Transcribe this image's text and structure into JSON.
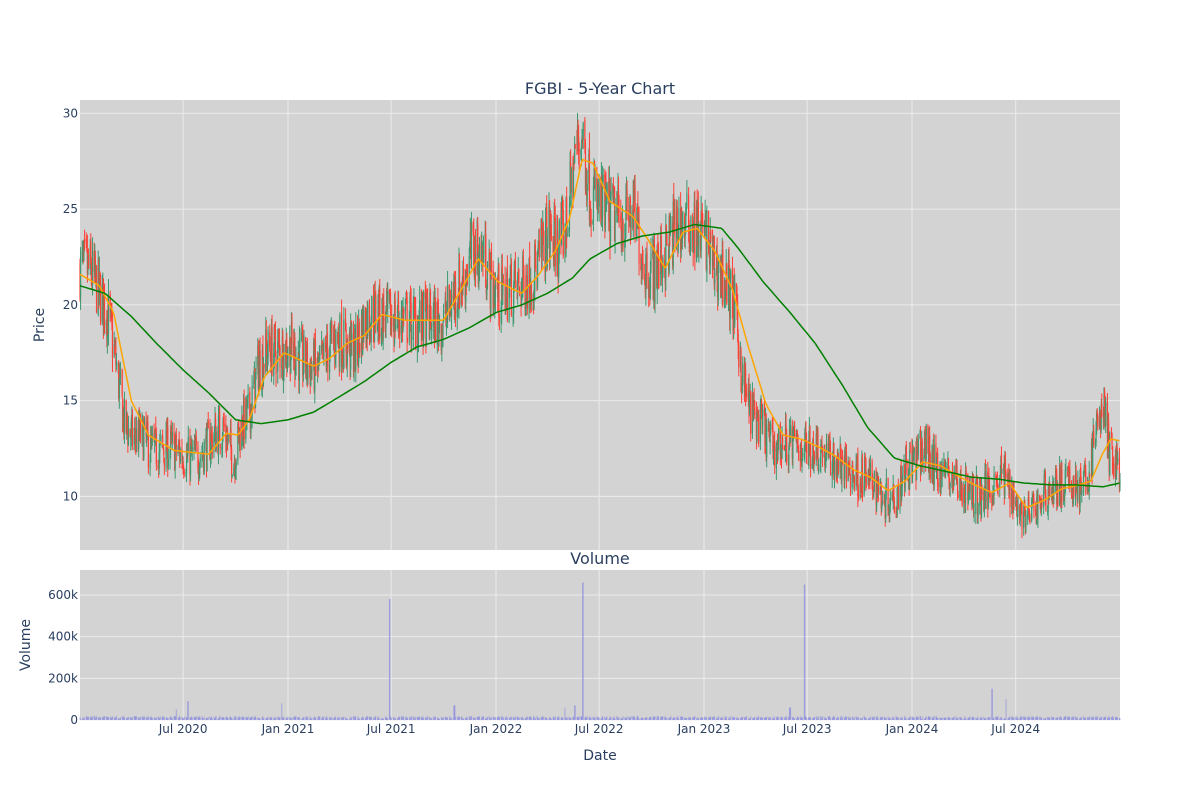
{
  "chart_data": [
    {
      "id": "price",
      "type": "candlestick",
      "title": "FGBI - 5-Year Chart",
      "ylabel": "Price",
      "xlabel": "",
      "ylim": [
        7.2,
        30.7
      ],
      "yticks": [
        10,
        15,
        20,
        25,
        30
      ],
      "x_start": "2020-01-02",
      "x_end": "2024-12-31",
      "grid": true,
      "colors": {
        "up": "#3d9970",
        "down": "#ff4136",
        "ma_short": "#ffa500",
        "ma_long": "#008000",
        "background": "#d3d3d3"
      },
      "close_anchors": [
        [
          "2020-01-02",
          22.0
        ],
        [
          "2020-01-20",
          21.8
        ],
        [
          "2020-02-05",
          20.6
        ],
        [
          "2020-02-20",
          19.6
        ],
        [
          "2020-03-05",
          17.0
        ],
        [
          "2020-03-20",
          13.8
        ],
        [
          "2020-04-05",
          13.0
        ],
        [
          "2020-04-20",
          13.2
        ],
        [
          "2020-05-05",
          12.4
        ],
        [
          "2020-05-20",
          12.4
        ],
        [
          "2020-06-05",
          12.6
        ],
        [
          "2020-06-25",
          12.3
        ],
        [
          "2020-07-10",
          12.0
        ],
        [
          "2020-08-01",
          12.2
        ],
        [
          "2020-08-25",
          13.2
        ],
        [
          "2020-09-10",
          13.6
        ],
        [
          "2020-09-28",
          11.8
        ],
        [
          "2020-10-10",
          13.6
        ],
        [
          "2020-10-25",
          14.3
        ],
        [
          "2020-11-10",
          16.8
        ],
        [
          "2020-11-25",
          17.6
        ],
        [
          "2020-12-20",
          17.6
        ],
        [
          "2021-01-05",
          17.8
        ],
        [
          "2021-01-20",
          17.3
        ],
        [
          "2021-02-05",
          16.8
        ],
        [
          "2021-02-25",
          16.6
        ],
        [
          "2021-03-15",
          17.8
        ],
        [
          "2021-03-30",
          18.3
        ],
        [
          "2021-04-15",
          17.8
        ],
        [
          "2021-04-30",
          17.6
        ],
        [
          "2021-05-15",
          19.2
        ],
        [
          "2021-05-30",
          19.6
        ],
        [
          "2021-06-15",
          19.4
        ],
        [
          "2021-06-30",
          19.2
        ],
        [
          "2021-07-20",
          19.4
        ],
        [
          "2021-08-10",
          19.1
        ],
        [
          "2021-09-05",
          19.3
        ],
        [
          "2021-10-01",
          19.1
        ],
        [
          "2021-10-20",
          20.6
        ],
        [
          "2021-11-05",
          21.3
        ],
        [
          "2021-11-20",
          22.8
        ],
        [
          "2021-12-10",
          22.7
        ],
        [
          "2021-12-25",
          21.0
        ],
        [
          "2022-01-10",
          20.4
        ],
        [
          "2022-01-25",
          20.9
        ],
        [
          "2022-02-15",
          21.0
        ],
        [
          "2022-03-01",
          21.4
        ],
        [
          "2022-03-15",
          22.0
        ],
        [
          "2022-04-01",
          23.8
        ],
        [
          "2022-04-20",
          23.0
        ],
        [
          "2022-05-05",
          24.2
        ],
        [
          "2022-05-20",
          28.0
        ],
        [
          "2022-06-01",
          29.0
        ],
        [
          "2022-06-15",
          26.0
        ],
        [
          "2022-07-01",
          25.2
        ],
        [
          "2022-07-20",
          24.8
        ],
        [
          "2022-08-10",
          24.4
        ],
        [
          "2022-08-30",
          24.8
        ],
        [
          "2022-09-20",
          22.0
        ],
        [
          "2022-10-05",
          21.8
        ],
        [
          "2022-10-25",
          22.6
        ],
        [
          "2022-11-10",
          24.0
        ],
        [
          "2022-11-25",
          24.2
        ],
        [
          "2022-12-15",
          24.0
        ],
        [
          "2023-01-01",
          23.8
        ],
        [
          "2023-01-20",
          22.0
        ],
        [
          "2023-02-10",
          21.2
        ],
        [
          "2023-02-25",
          19.6
        ],
        [
          "2023-03-10",
          16.0
        ],
        [
          "2023-03-25",
          14.4
        ],
        [
          "2023-04-15",
          13.6
        ],
        [
          "2023-05-01",
          12.6
        ],
        [
          "2023-05-25",
          12.8
        ],
        [
          "2023-06-20",
          12.6
        ],
        [
          "2023-07-20",
          12.6
        ],
        [
          "2023-08-10",
          12.0
        ],
        [
          "2023-08-30",
          11.6
        ],
        [
          "2023-09-20",
          11.2
        ],
        [
          "2023-10-10",
          11.0
        ],
        [
          "2023-10-30",
          10.6
        ],
        [
          "2023-11-15",
          9.9
        ],
        [
          "2023-12-05",
          10.2
        ],
        [
          "2023-12-20",
          11.6
        ],
        [
          "2024-01-10",
          11.9
        ],
        [
          "2024-01-25",
          12.6
        ],
        [
          "2024-02-10",
          11.6
        ],
        [
          "2024-03-01",
          11.2
        ],
        [
          "2024-03-20",
          10.8
        ],
        [
          "2024-04-10",
          10.2
        ],
        [
          "2024-04-30",
          10.0
        ],
        [
          "2024-05-20",
          10.6
        ],
        [
          "2024-06-05",
          11.2
        ],
        [
          "2024-06-20",
          10.6
        ],
        [
          "2024-07-05",
          9.4
        ],
        [
          "2024-07-20",
          8.9
        ],
        [
          "2024-08-05",
          9.4
        ],
        [
          "2024-08-20",
          10.2
        ],
        [
          "2024-09-10",
          10.5
        ],
        [
          "2024-09-30",
          10.6
        ],
        [
          "2024-10-15",
          10.6
        ],
        [
          "2024-10-30",
          10.5
        ],
        [
          "2024-11-10",
          11.8
        ],
        [
          "2024-11-20",
          13.6
        ],
        [
          "2024-12-02",
          14.8
        ],
        [
          "2024-12-12",
          12.4
        ],
        [
          "2024-12-31",
          11.4
        ]
      ],
      "ma_short_anchors": [
        [
          "2020-01-02",
          21.6
        ],
        [
          "2020-02-05",
          21.0
        ],
        [
          "2020-03-01",
          19.6
        ],
        [
          "2020-04-01",
          15.0
        ],
        [
          "2020-05-01",
          13.2
        ],
        [
          "2020-06-15",
          12.4
        ],
        [
          "2020-07-15",
          12.3
        ],
        [
          "2020-08-15",
          12.2
        ],
        [
          "2020-09-15",
          13.3
        ],
        [
          "2020-10-05",
          13.2
        ],
        [
          "2020-10-25",
          14.0
        ],
        [
          "2020-11-20",
          16.2
        ],
        [
          "2020-12-25",
          17.5
        ],
        [
          "2021-02-15",
          16.8
        ],
        [
          "2021-03-15",
          17.2
        ],
        [
          "2021-04-15",
          18.0
        ],
        [
          "2021-05-15",
          18.4
        ],
        [
          "2021-06-15",
          19.5
        ],
        [
          "2021-07-25",
          19.2
        ],
        [
          "2021-09-01",
          19.2
        ],
        [
          "2021-10-01",
          19.2
        ],
        [
          "2021-11-01",
          20.8
        ],
        [
          "2021-12-01",
          22.4
        ],
        [
          "2022-01-05",
          21.2
        ],
        [
          "2022-02-15",
          20.6
        ],
        [
          "2022-03-15",
          21.5
        ],
        [
          "2022-04-15",
          22.8
        ],
        [
          "2022-05-10",
          24.5
        ],
        [
          "2022-06-01",
          27.6
        ],
        [
          "2022-06-20",
          27.4
        ],
        [
          "2022-07-20",
          25.4
        ],
        [
          "2022-08-30",
          24.6
        ],
        [
          "2022-09-25",
          23.4
        ],
        [
          "2022-10-25",
          21.9
        ],
        [
          "2022-11-25",
          23.8
        ],
        [
          "2022-12-20",
          24.0
        ],
        [
          "2023-01-20",
          22.8
        ],
        [
          "2023-02-20",
          20.8
        ],
        [
          "2023-03-20",
          17.8
        ],
        [
          "2023-04-20",
          14.8
        ],
        [
          "2023-05-20",
          13.2
        ],
        [
          "2023-06-20",
          13.0
        ],
        [
          "2023-07-20",
          12.6
        ],
        [
          "2023-08-20",
          12.1
        ],
        [
          "2023-09-20",
          11.4
        ],
        [
          "2023-10-20",
          11.0
        ],
        [
          "2023-11-20",
          10.3
        ],
        [
          "2023-12-20",
          10.8
        ],
        [
          "2024-01-20",
          11.8
        ],
        [
          "2024-02-20",
          11.6
        ],
        [
          "2024-03-20",
          11.1
        ],
        [
          "2024-04-20",
          10.6
        ],
        [
          "2024-05-20",
          10.2
        ],
        [
          "2024-06-20",
          10.7
        ],
        [
          "2024-07-20",
          9.4
        ],
        [
          "2024-08-20",
          9.8
        ],
        [
          "2024-09-20",
          10.4
        ],
        [
          "2024-10-20",
          10.6
        ],
        [
          "2024-11-10",
          10.8
        ],
        [
          "2024-11-30",
          12.2
        ],
        [
          "2024-12-15",
          13.0
        ],
        [
          "2024-12-31",
          12.9
        ]
      ],
      "ma_long_anchors": [
        [
          "2020-01-02",
          21.0
        ],
        [
          "2020-02-15",
          20.6
        ],
        [
          "2020-04-01",
          19.4
        ],
        [
          "2020-05-15",
          18.0
        ],
        [
          "2020-07-01",
          16.6
        ],
        [
          "2020-08-15",
          15.4
        ],
        [
          "2020-10-01",
          14.0
        ],
        [
          "2020-11-15",
          13.8
        ],
        [
          "2021-01-01",
          14.0
        ],
        [
          "2021-02-15",
          14.4
        ],
        [
          "2021-04-01",
          15.2
        ],
        [
          "2021-05-15",
          16.0
        ],
        [
          "2021-07-01",
          17.0
        ],
        [
          "2021-08-15",
          17.8
        ],
        [
          "2021-10-01",
          18.2
        ],
        [
          "2021-11-15",
          18.8
        ],
        [
          "2022-01-01",
          19.6
        ],
        [
          "2022-02-15",
          20.0
        ],
        [
          "2022-04-01",
          20.6
        ],
        [
          "2022-05-15",
          21.4
        ],
        [
          "2022-06-15",
          22.4
        ],
        [
          "2022-08-01",
          23.2
        ],
        [
          "2022-09-15",
          23.6
        ],
        [
          "2022-11-01",
          23.8
        ],
        [
          "2022-12-15",
          24.2
        ],
        [
          "2023-02-01",
          24.0
        ],
        [
          "2023-03-01",
          23.0
        ],
        [
          "2023-04-15",
          21.2
        ],
        [
          "2023-06-01",
          19.6
        ],
        [
          "2023-07-15",
          18.0
        ],
        [
          "2023-09-01",
          15.8
        ],
        [
          "2023-10-15",
          13.6
        ],
        [
          "2023-12-01",
          12.0
        ],
        [
          "2024-01-15",
          11.6
        ],
        [
          "2024-03-01",
          11.3
        ],
        [
          "2024-04-15",
          11.0
        ],
        [
          "2024-06-01",
          10.9
        ],
        [
          "2024-07-15",
          10.7
        ],
        [
          "2024-09-01",
          10.6
        ],
        [
          "2024-10-15",
          10.6
        ],
        [
          "2024-12-01",
          10.5
        ],
        [
          "2024-12-31",
          10.7
        ]
      ]
    },
    {
      "id": "volume",
      "type": "bar",
      "title": "Volume",
      "ylabel": "Volume",
      "xlabel": "Date",
      "ylim": [
        0,
        720000
      ],
      "yticks": [
        0,
        200000,
        400000,
        600000
      ],
      "ytick_labels": [
        "0",
        "200k",
        "400k",
        "600k"
      ],
      "xticks": [
        "2020-07-01",
        "2021-01-01",
        "2021-07-01",
        "2022-01-01",
        "2022-07-01",
        "2023-01-01",
        "2023-07-01",
        "2024-01-01",
        "2024-07-01"
      ],
      "xtick_labels": [
        "Jul 2020",
        "Jan 2021",
        "Jul 2021",
        "Jan 2022",
        "Jul 2022",
        "Jan 2023",
        "Jul 2023",
        "Jan 2024",
        "Jul 2024"
      ],
      "grid": true,
      "colors": {
        "bar": "#8080e0",
        "background": "#d3d3d3"
      },
      "base_volume": 12000,
      "spikes": [
        [
          "2020-06-20",
          50000
        ],
        [
          "2020-07-10",
          90000
        ],
        [
          "2020-12-20",
          80000
        ],
        [
          "2021-06-28",
          580000
        ],
        [
          "2021-10-20",
          70000
        ],
        [
          "2022-05-01",
          60000
        ],
        [
          "2022-05-20",
          70000
        ],
        [
          "2022-06-03",
          660000
        ],
        [
          "2023-06-01",
          60000
        ],
        [
          "2023-06-26",
          650000
        ],
        [
          "2024-05-20",
          150000
        ],
        [
          "2024-06-15",
          100000
        ]
      ]
    }
  ]
}
